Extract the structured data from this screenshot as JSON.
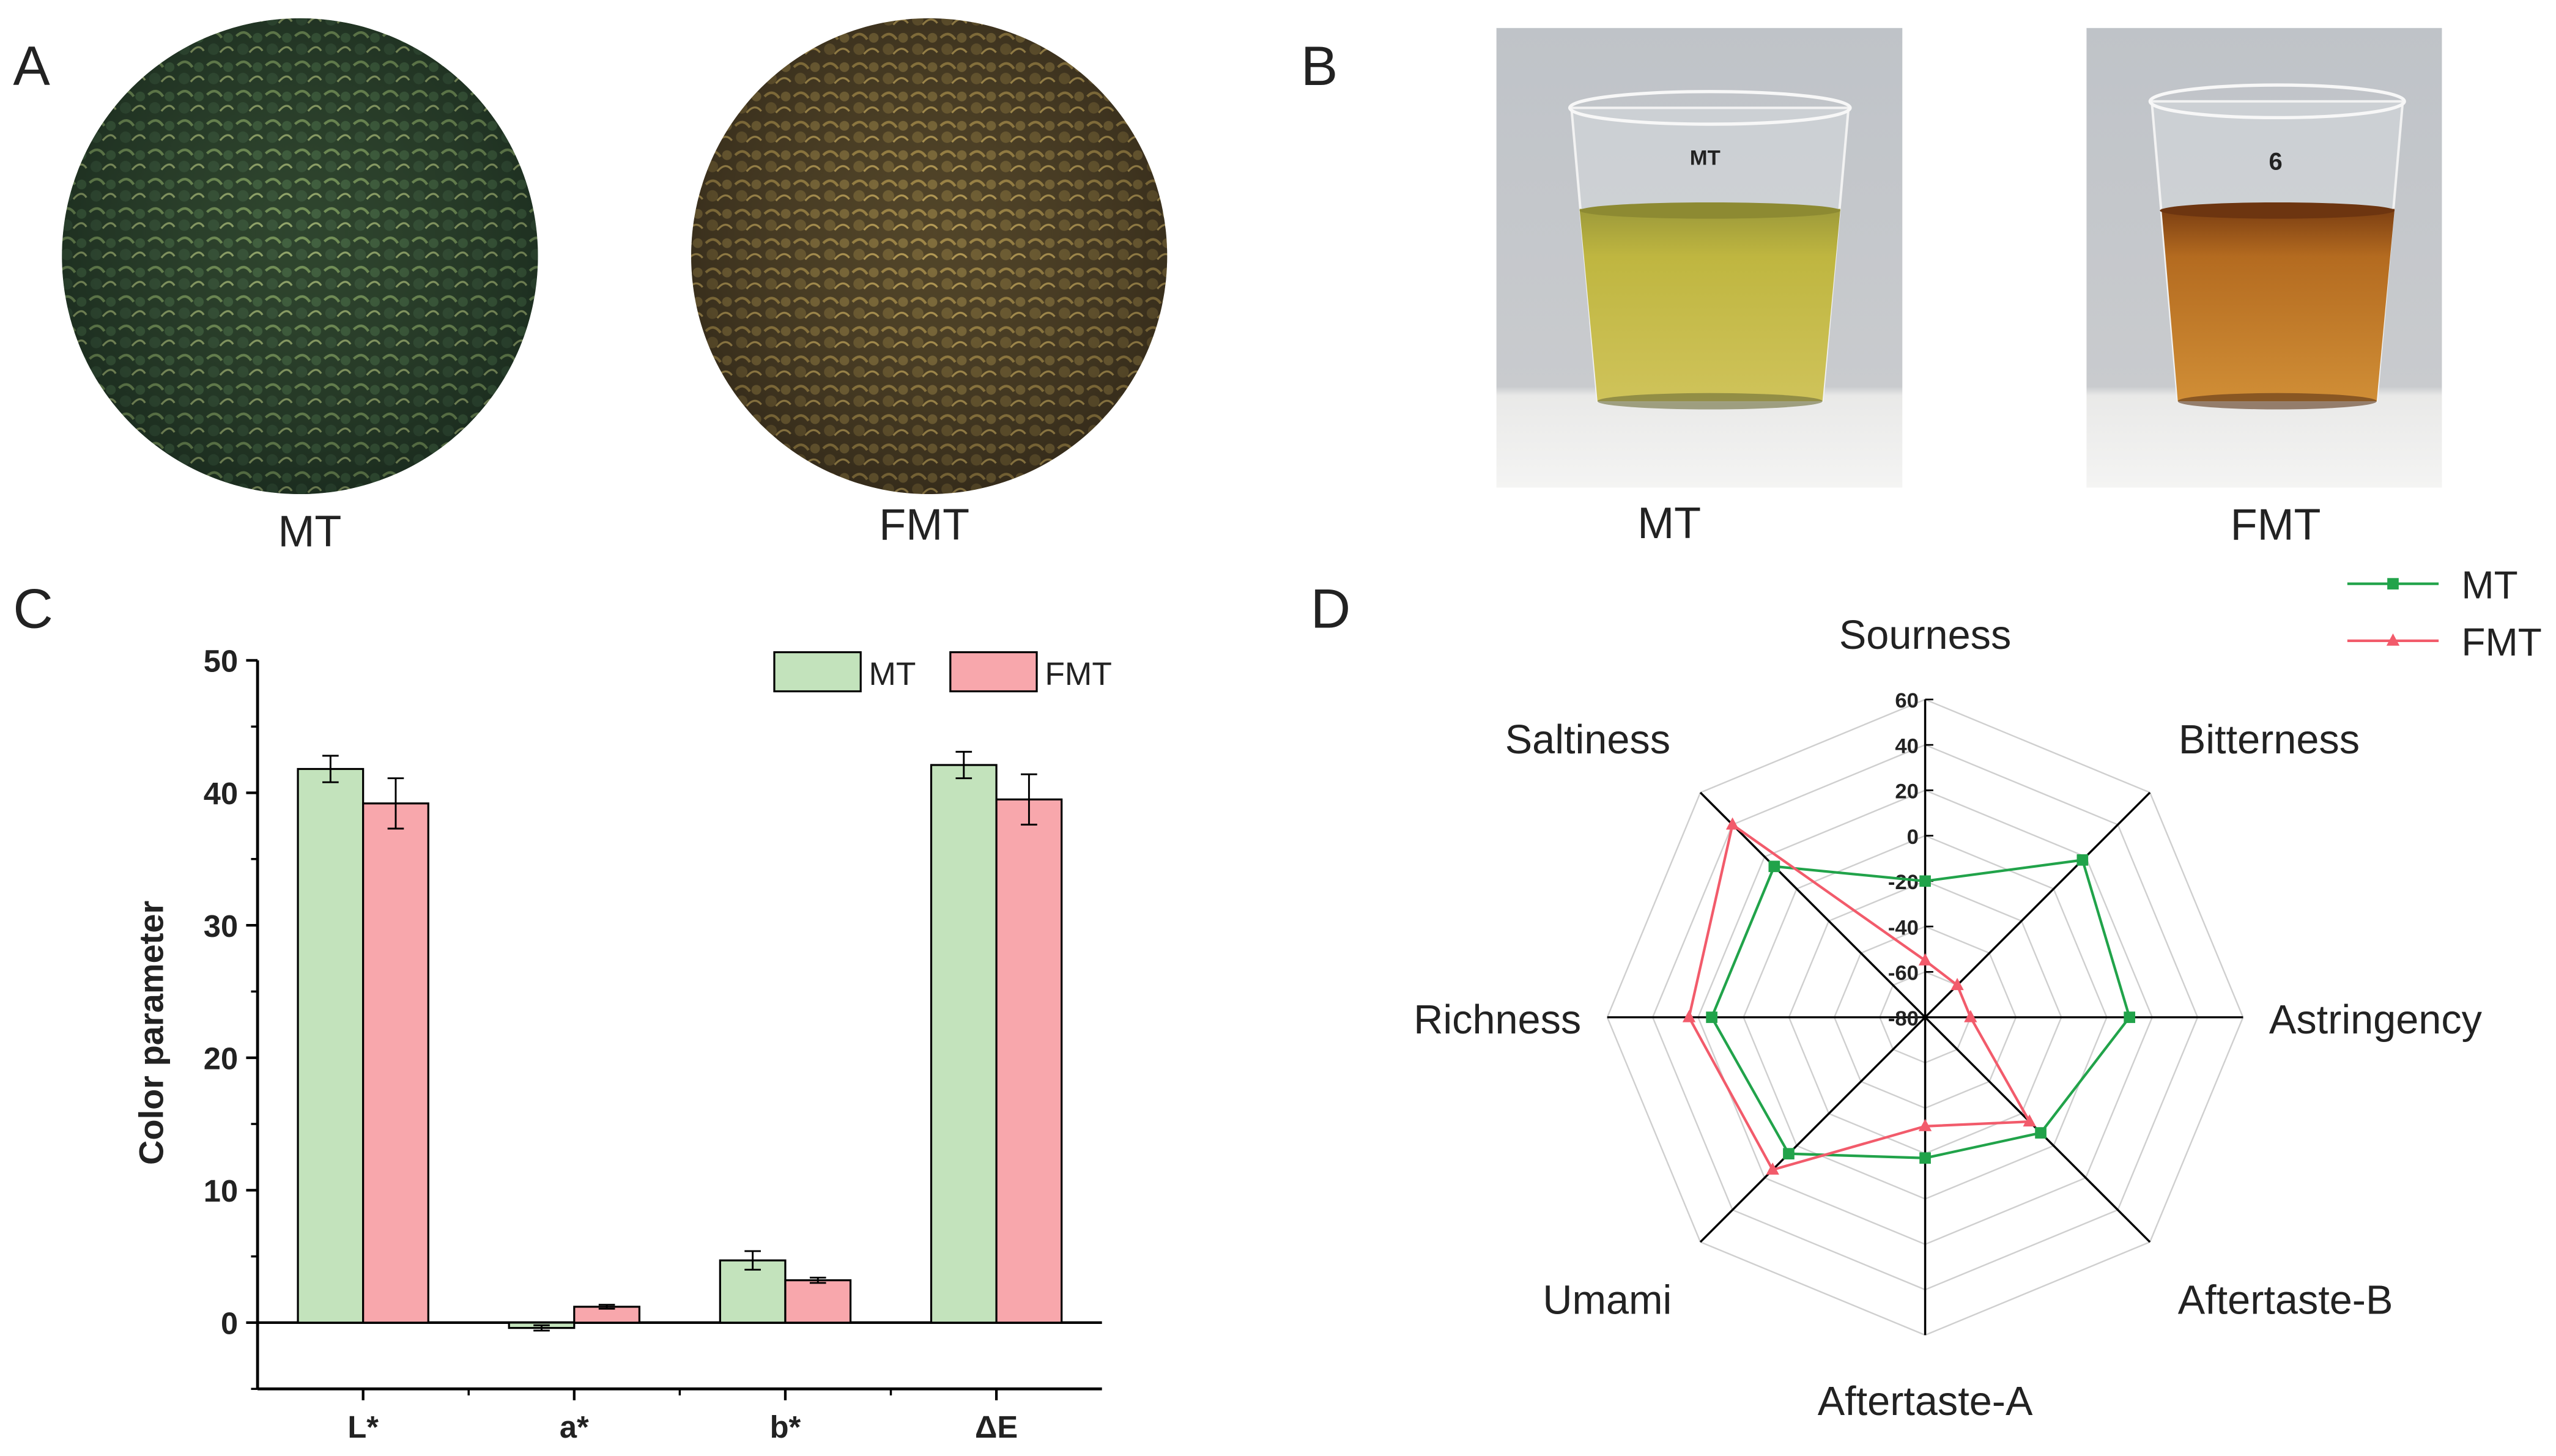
{
  "panels": {
    "A": {
      "letter": "A",
      "images": [
        {
          "label": "MT",
          "color_light": "#5e7a4e",
          "color_dark": "#17251a"
        },
        {
          "label": "FMT",
          "color_light": "#8d7a43",
          "color_dark": "#2b2314"
        }
      ]
    },
    "B": {
      "letter": "B",
      "images": [
        {
          "label": "MT",
          "cup_text": "MT",
          "liquid": "#bdb23a",
          "liquid_dark": "#a7a02c"
        },
        {
          "label": "FMT",
          "cup_text": "6",
          "liquid": "#c27a25",
          "liquid_dark": "#9b5415"
        }
      ]
    },
    "C": {
      "letter": "C"
    },
    "D": {
      "letter": "D"
    }
  },
  "colors": {
    "MT": "#c3e3bc",
    "FMT": "#f8a7ac",
    "MT_line": "#21a34a",
    "FMT_line": "#f25b6b"
  },
  "chart_data": [
    {
      "type": "bar",
      "panel": "C",
      "categories": [
        "L*",
        "a*",
        "b*",
        "ΔE"
      ],
      "series": [
        {
          "name": "MT",
          "values": [
            41.8,
            -0.4,
            4.7,
            42.1
          ],
          "errors": [
            1.0,
            0.2,
            0.7,
            1.0
          ]
        },
        {
          "name": "FMT",
          "values": [
            39.2,
            1.2,
            3.2,
            39.5
          ],
          "errors": [
            1.9,
            0.15,
            0.2,
            1.9
          ]
        }
      ],
      "ylabel": "Color parameter",
      "ylim": [
        -5,
        50
      ],
      "yticks": [
        0,
        10,
        20,
        30,
        40,
        50
      ],
      "legend_position": "top-right"
    },
    {
      "type": "radar",
      "panel": "D",
      "axes": [
        "Sourness",
        "Bitterness",
        "Astringency",
        "Aftertaste-B",
        "Aftertaste-A",
        "Umami",
        "Richness",
        "Saltiness"
      ],
      "rlim": [
        -80,
        60
      ],
      "rticks": [
        60,
        40,
        20,
        0,
        -20,
        -40,
        -60,
        -80
      ],
      "series": [
        {
          "name": "MT",
          "values": [
            -20,
            18,
            10,
            -8,
            -18,
            5,
            14,
            14
          ]
        },
        {
          "name": "FMT",
          "values": [
            -55,
            -60,
            -60,
            -15,
            -32,
            15,
            24,
            40
          ]
        }
      ],
      "legend_position": "top-right"
    }
  ]
}
